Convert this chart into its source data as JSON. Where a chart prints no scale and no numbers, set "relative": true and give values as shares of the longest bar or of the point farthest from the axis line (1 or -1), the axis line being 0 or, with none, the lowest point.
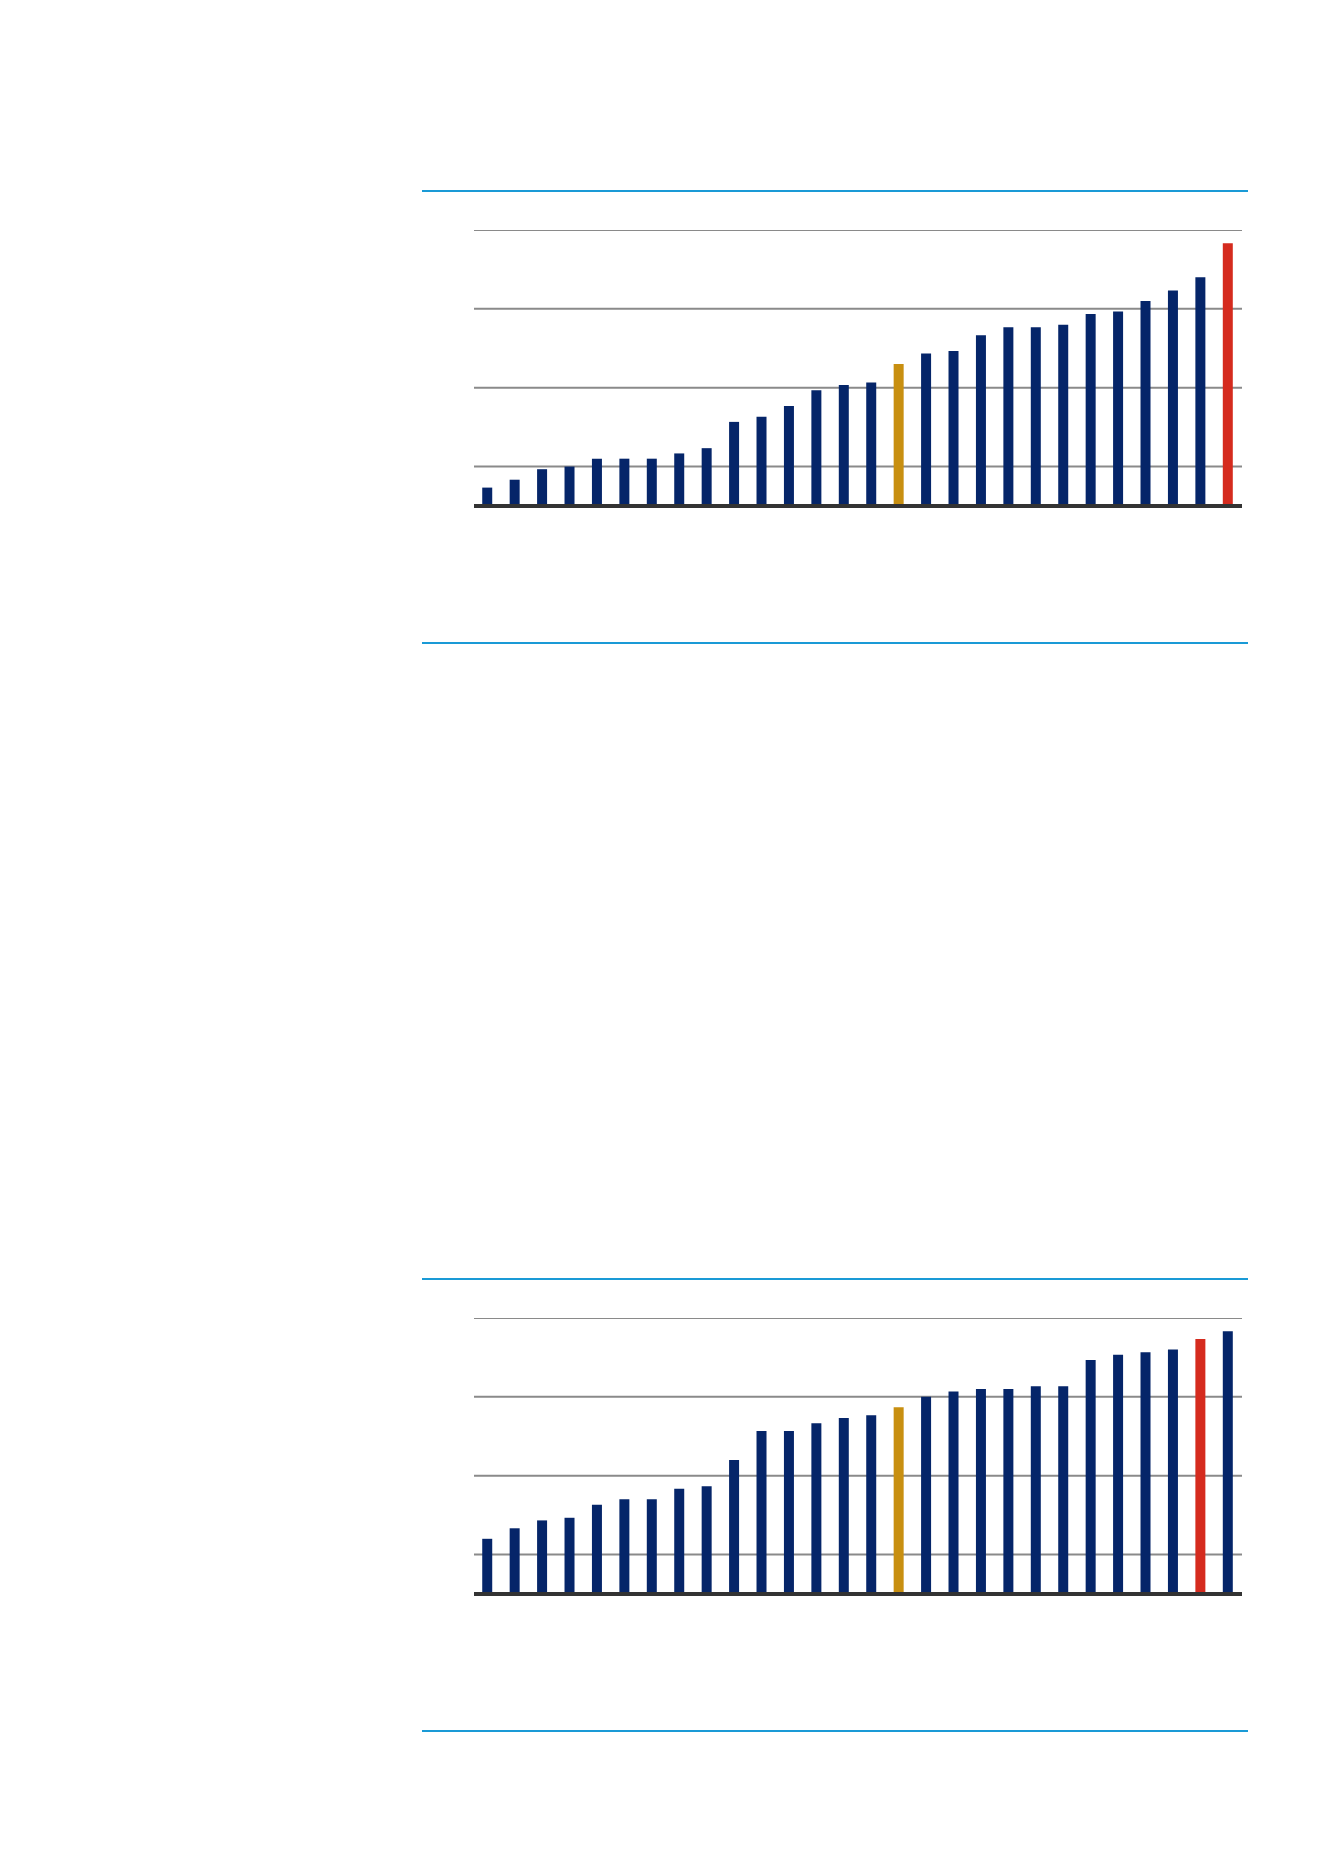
{
  "chart_data": [
    {
      "type": "bar",
      "relative": true,
      "grid": "y",
      "categories": [
        null,
        null,
        null,
        null,
        null,
        null,
        null,
        null,
        null,
        null,
        null,
        null,
        null,
        null,
        null,
        null,
        null,
        null,
        null,
        null,
        null,
        null,
        null,
        null,
        null,
        null,
        null,
        null
      ],
      "values": [
        0.07,
        0.1,
        0.14,
        0.15,
        0.18,
        0.18,
        0.18,
        0.2,
        0.22,
        0.32,
        0.34,
        0.38,
        0.44,
        0.46,
        0.47,
        0.54,
        0.58,
        0.59,
        0.65,
        0.68,
        0.68,
        0.69,
        0.73,
        0.74,
        0.78,
        0.82,
        0.87,
        1
      ],
      "colors": [
        "#052569",
        "#052569",
        "#052569",
        "#052569",
        "#052569",
        "#052569",
        "#052569",
        "#052569",
        "#052569",
        "#052569",
        "#052569",
        "#052569",
        "#052569",
        "#052569",
        "#052569",
        "#c88f10",
        "#052569",
        "#052569",
        "#052569",
        "#052569",
        "#052569",
        "#052569",
        "#052569",
        "#052569",
        "#052569",
        "#052569",
        "#052569",
        "#d52b1e"
      ]
    },
    {
      "type": "bar",
      "relative": true,
      "grid": "y",
      "categories": [
        null,
        null,
        null,
        null,
        null,
        null,
        null,
        null,
        null,
        null,
        null,
        null,
        null,
        null,
        null,
        null,
        null,
        null,
        null,
        null,
        null,
        null,
        null,
        null,
        null,
        null,
        null,
        null
      ],
      "values": [
        0.21,
        0.25,
        0.28,
        0.29,
        0.34,
        0.36,
        0.36,
        0.4,
        0.41,
        0.51,
        0.62,
        0.62,
        0.65,
        0.67,
        0.68,
        0.71,
        0.75,
        0.77,
        0.78,
        0.78,
        0.79,
        0.79,
        0.89,
        0.91,
        0.92,
        0.93,
        0.97,
        1
      ],
      "colors": [
        "#052569",
        "#052569",
        "#052569",
        "#052569",
        "#052569",
        "#052569",
        "#052569",
        "#052569",
        "#052569",
        "#052569",
        "#052569",
        "#052569",
        "#052569",
        "#052569",
        "#052569",
        "#c88f10",
        "#052569",
        "#052569",
        "#052569",
        "#052569",
        "#052569",
        "#052569",
        "#052569",
        "#052569",
        "#052569",
        "#052569",
        "#d52b1e",
        "#052569"
      ]
    }
  ]
}
